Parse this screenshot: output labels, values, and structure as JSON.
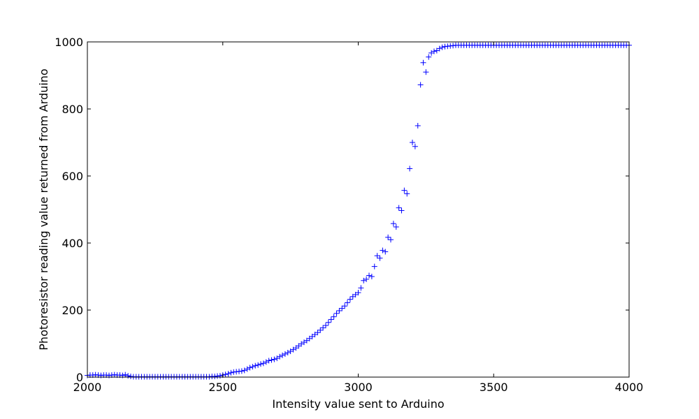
{
  "chart_data": {
    "type": "scatter",
    "marker": "+",
    "marker_color": "#0000ff",
    "title": "",
    "xlabel": "Intensity value sent to Arduino",
    "ylabel": "Photoresistor reading value returned from Arduino",
    "xlim": [
      2000,
      4000
    ],
    "ylim": [
      0,
      1000
    ],
    "grid": false,
    "legend": "none",
    "x_ticks": [
      2000,
      2500,
      3000,
      3500,
      4000
    ],
    "x_tick_labels": [
      "2000",
      "2500",
      "3000",
      "3500",
      "4000"
    ],
    "y_ticks": [
      0,
      200,
      400,
      600,
      800,
      1000
    ],
    "y_tick_labels": [
      "0",
      "200",
      "400",
      "600",
      "800",
      "1000"
    ],
    "x": [
      2000,
      2010,
      2020,
      2030,
      2040,
      2050,
      2060,
      2070,
      2080,
      2090,
      2100,
      2110,
      2120,
      2130,
      2140,
      2150,
      2160,
      2170,
      2180,
      2190,
      2200,
      2210,
      2220,
      2230,
      2240,
      2250,
      2260,
      2270,
      2280,
      2290,
      2300,
      2310,
      2320,
      2330,
      2340,
      2350,
      2360,
      2370,
      2380,
      2390,
      2400,
      2410,
      2420,
      2430,
      2440,
      2450,
      2460,
      2470,
      2480,
      2490,
      2500,
      2510,
      2520,
      2530,
      2540,
      2550,
      2560,
      2570,
      2580,
      2590,
      2600,
      2610,
      2620,
      2630,
      2640,
      2650,
      2660,
      2670,
      2680,
      2690,
      2700,
      2710,
      2720,
      2730,
      2740,
      2750,
      2760,
      2770,
      2780,
      2790,
      2800,
      2810,
      2820,
      2830,
      2840,
      2850,
      2860,
      2870,
      2880,
      2890,
      2900,
      2910,
      2920,
      2930,
      2940,
      2950,
      2960,
      2970,
      2980,
      2990,
      3000,
      3010,
      3020,
      3030,
      3040,
      3050,
      3060,
      3070,
      3080,
      3090,
      3100,
      3110,
      3120,
      3130,
      3140,
      3150,
      3160,
      3170,
      3180,
      3190,
      3200,
      3210,
      3220,
      3230,
      3240,
      3250,
      3260,
      3270,
      3280,
      3290,
      3300,
      3310,
      3320,
      3330,
      3340,
      3350,
      3360,
      3370,
      3380,
      3390,
      3400,
      3410,
      3420,
      3430,
      3440,
      3450,
      3460,
      3470,
      3480,
      3490,
      3500,
      3510,
      3520,
      3530,
      3540,
      3550,
      3560,
      3570,
      3580,
      3590,
      3600,
      3610,
      3620,
      3630,
      3640,
      3650,
      3660,
      3670,
      3680,
      3690,
      3700,
      3710,
      3720,
      3730,
      3740,
      3750,
      3760,
      3770,
      3780,
      3790,
      3800,
      3810,
      3820,
      3830,
      3840,
      3850,
      3860,
      3870,
      3880,
      3890,
      3900,
      3910,
      3920,
      3930,
      3940,
      3950,
      3960,
      3970,
      3980,
      3990,
      4000
    ],
    "y": [
      5,
      6,
      6,
      7,
      6,
      5,
      6,
      6,
      5,
      6,
      7,
      6,
      6,
      5,
      7,
      4,
      2,
      1,
      1,
      1,
      1,
      1,
      1,
      1,
      1,
      1,
      1,
      1,
      1,
      1,
      1,
      1,
      1,
      1,
      1,
      1,
      1,
      1,
      1,
      1,
      1,
      1,
      1,
      1,
      1,
      1,
      2,
      2,
      3,
      4,
      6,
      8,
      10,
      13,
      15,
      16,
      17,
      18,
      20,
      24,
      28,
      31,
      34,
      36,
      39,
      41,
      45,
      49,
      51,
      53,
      56,
      61,
      65,
      69,
      73,
      77,
      82,
      87,
      93,
      99,
      104,
      109,
      115,
      121,
      127,
      133,
      140,
      147,
      154,
      163,
      172,
      180,
      190,
      198,
      205,
      212,
      222,
      232,
      240,
      246,
      252,
      266,
      288,
      292,
      303,
      300,
      330,
      362,
      355,
      378,
      374,
      417,
      410,
      458,
      448,
      505,
      497,
      557,
      547,
      622,
      700,
      688,
      750,
      872,
      938,
      910,
      955,
      967,
      972,
      974,
      980,
      984,
      986,
      987,
      988,
      989,
      990,
      990,
      990,
      990,
      990,
      990,
      990,
      990,
      990,
      990,
      990,
      990,
      990,
      990,
      990,
      990,
      990,
      990,
      990,
      990,
      990,
      990,
      990,
      990,
      990,
      990,
      990,
      990,
      990,
      990,
      990,
      990,
      990,
      990,
      990,
      990,
      990,
      990,
      990,
      990,
      990,
      990,
      990,
      990,
      990,
      990,
      990,
      990,
      990,
      990,
      990,
      990,
      990,
      990,
      990,
      990,
      990,
      990,
      990,
      990,
      990,
      990,
      990,
      990,
      990
    ]
  }
}
